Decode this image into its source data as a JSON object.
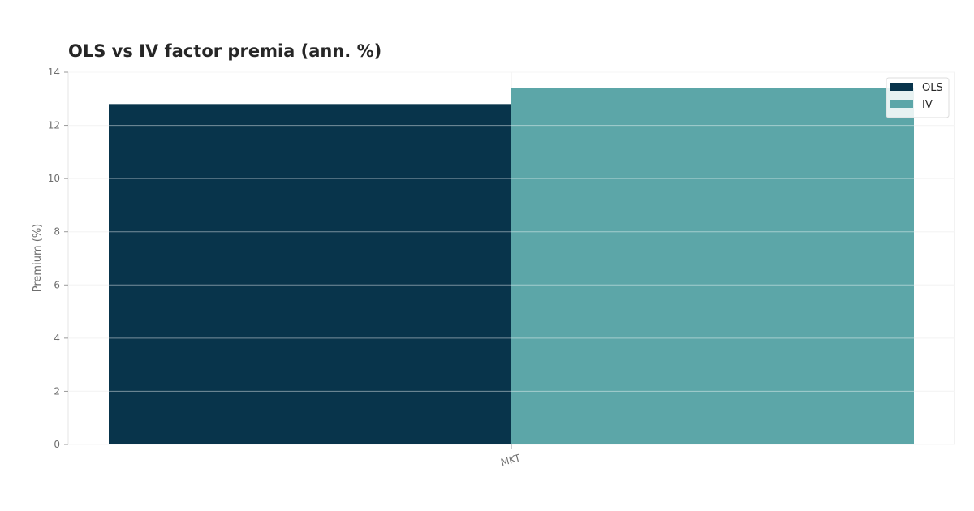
{
  "chart_data": {
    "type": "bar",
    "title": "OLS vs IV factor premia (ann. %)",
    "xlabel": "",
    "ylabel": "Premium (%)",
    "categories": [
      "MKT"
    ],
    "series": [
      {
        "name": "OLS",
        "values": [
          12.8
        ],
        "color": "#08344b"
      },
      {
        "name": "IV",
        "values": [
          13.4
        ],
        "color": "#5ca6a8"
      }
    ],
    "ylim": [
      0,
      14
    ],
    "yticks": [
      "0",
      "2",
      "4",
      "6",
      "8",
      "10",
      "12",
      "14"
    ],
    "grid": true,
    "legend_position": "top-right"
  }
}
